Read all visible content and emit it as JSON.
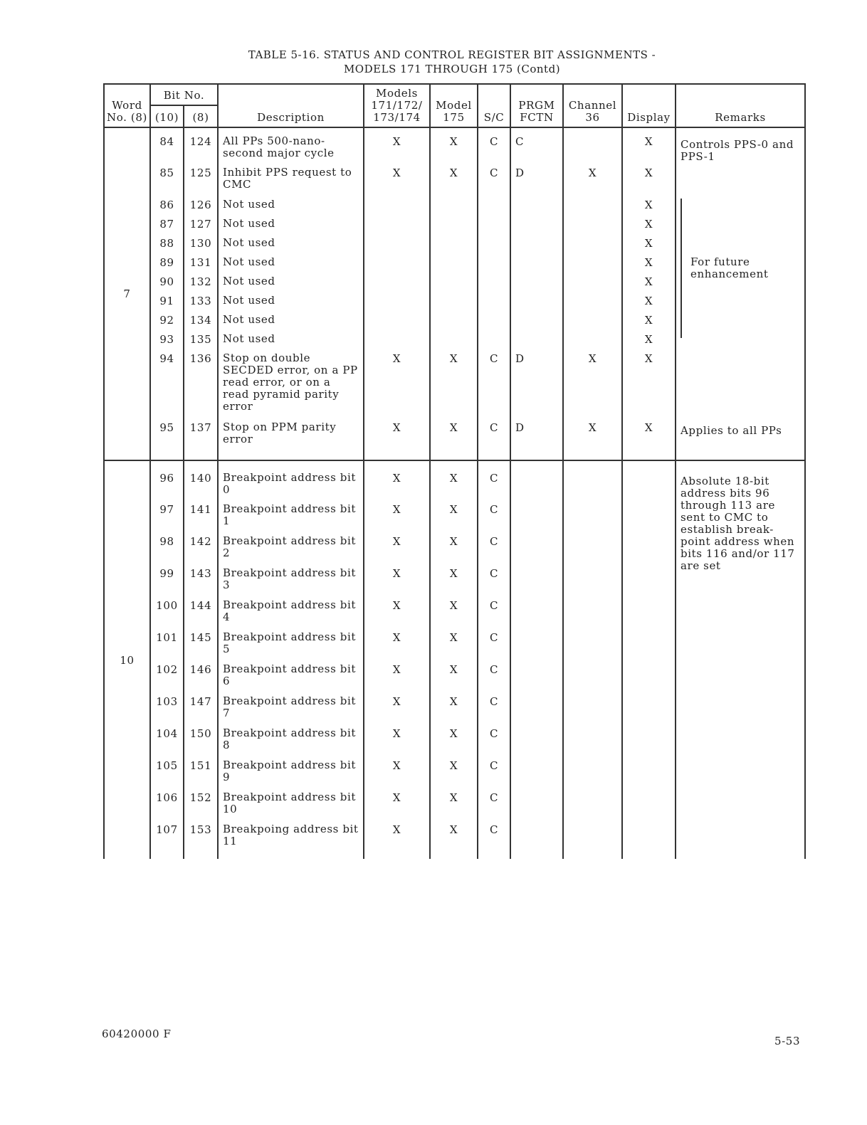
{
  "title": {
    "line1": "TABLE 5-16. STATUS AND CONTROL REGISTER BIT ASSIGNMENTS -",
    "line2": "MODELS 171 THROUGH 175 (Contd)"
  },
  "headers": {
    "word": "Word No. (8)",
    "bit": "Bit No.",
    "bit10": "(10)",
    "bit8": "(8)",
    "description": "Description",
    "models": "Models 171/172/ 173/174",
    "model175": "Model 175",
    "sc": "S/C",
    "prgm": "PRGM FCTN",
    "channel": "Channel 36",
    "display": "Display",
    "remarks": "Remarks"
  },
  "sections": [
    {
      "word": "7",
      "rows": [
        {
          "b10": "84",
          "b8": "124",
          "desc": "All PPs 500-nano-second major cycle",
          "m": "X",
          "m175": "X",
          "sc": "C",
          "prgm": "C",
          "ch": "",
          "disp": "X"
        },
        {
          "b10": "85",
          "b8": "125",
          "desc": "Inhibit PPS request to CMC",
          "m": "X",
          "m175": "X",
          "sc": "C",
          "prgm": "D",
          "ch": "X",
          "disp": "X"
        },
        {
          "b10": "86",
          "b8": "126",
          "desc": "Not used",
          "m": "",
          "m175": "",
          "sc": "",
          "prgm": "",
          "ch": "",
          "disp": "X"
        },
        {
          "b10": "87",
          "b8": "127",
          "desc": "Not used",
          "m": "",
          "m175": "",
          "sc": "",
          "prgm": "",
          "ch": "",
          "disp": "X"
        },
        {
          "b10": "88",
          "b8": "130",
          "desc": "Not used",
          "m": "",
          "m175": "",
          "sc": "",
          "prgm": "",
          "ch": "",
          "disp": "X"
        },
        {
          "b10": "89",
          "b8": "131",
          "desc": "Not used",
          "m": "",
          "m175": "",
          "sc": "",
          "prgm": "",
          "ch": "",
          "disp": "X"
        },
        {
          "b10": "90",
          "b8": "132",
          "desc": "Not used",
          "m": "",
          "m175": "",
          "sc": "",
          "prgm": "",
          "ch": "",
          "disp": "X"
        },
        {
          "b10": "91",
          "b8": "133",
          "desc": "Not used",
          "m": "",
          "m175": "",
          "sc": "",
          "prgm": "",
          "ch": "",
          "disp": "X"
        },
        {
          "b10": "92",
          "b8": "134",
          "desc": "Not used",
          "m": "",
          "m175": "",
          "sc": "",
          "prgm": "",
          "ch": "",
          "disp": "X"
        },
        {
          "b10": "93",
          "b8": "135",
          "desc": "Not used",
          "m": "",
          "m175": "",
          "sc": "",
          "prgm": "",
          "ch": "",
          "disp": "X"
        },
        {
          "b10": "94",
          "b8": "136",
          "desc": "Stop on double SECDED error, on a PP read error, or on a read pyramid parity error",
          "m": "X",
          "m175": "X",
          "sc": "C",
          "prgm": "D",
          "ch": "X",
          "disp": "X"
        },
        {
          "b10": "95",
          "b8": "137",
          "desc": "Stop on PPM parity error",
          "m": "X",
          "m175": "X",
          "sc": "C",
          "prgm": "D",
          "ch": "X",
          "disp": "X"
        }
      ],
      "remarks": [
        {
          "start": 0,
          "span": 2,
          "text": "Controls PPS-0 and PPS-1"
        },
        {
          "start": 2,
          "span": 8,
          "text": "For future enhancement",
          "bracket": true
        },
        {
          "start": 10,
          "span": 1,
          "text": ""
        },
        {
          "start": 11,
          "span": 1,
          "text": "Applies to all PPs"
        }
      ]
    },
    {
      "word": "10",
      "rows": [
        {
          "b10": "96",
          "b8": "140",
          "desc": "Breakpoint address bit 0",
          "m": "X",
          "m175": "X",
          "sc": "C",
          "prgm": "",
          "ch": "",
          "disp": ""
        },
        {
          "b10": "97",
          "b8": "141",
          "desc": "Breakpoint address bit 1",
          "m": "X",
          "m175": "X",
          "sc": "C",
          "prgm": "",
          "ch": "",
          "disp": ""
        },
        {
          "b10": "98",
          "b8": "142",
          "desc": "Breakpoint address bit 2",
          "m": "X",
          "m175": "X",
          "sc": "C",
          "prgm": "",
          "ch": "",
          "disp": ""
        },
        {
          "b10": "99",
          "b8": "143",
          "desc": "Breakpoint address bit 3",
          "m": "X",
          "m175": "X",
          "sc": "C",
          "prgm": "",
          "ch": "",
          "disp": ""
        },
        {
          "b10": "100",
          "b8": "144",
          "desc": "Breakpoint address bit 4",
          "m": "X",
          "m175": "X",
          "sc": "C",
          "prgm": "",
          "ch": "",
          "disp": ""
        },
        {
          "b10": "101",
          "b8": "145",
          "desc": "Breakpoint address bit 5",
          "m": "X",
          "m175": "X",
          "sc": "C",
          "prgm": "",
          "ch": "",
          "disp": ""
        },
        {
          "b10": "102",
          "b8": "146",
          "desc": "Breakpoint address bit 6",
          "m": "X",
          "m175": "X",
          "sc": "C",
          "prgm": "",
          "ch": "",
          "disp": ""
        },
        {
          "b10": "103",
          "b8": "147",
          "desc": "Breakpoint address bit 7",
          "m": "X",
          "m175": "X",
          "sc": "C",
          "prgm": "",
          "ch": "",
          "disp": ""
        },
        {
          "b10": "104",
          "b8": "150",
          "desc": "Breakpoint address bit 8",
          "m": "X",
          "m175": "X",
          "sc": "C",
          "prgm": "",
          "ch": "",
          "disp": ""
        },
        {
          "b10": "105",
          "b8": "151",
          "desc": "Breakpoint address bit 9",
          "m": "X",
          "m175": "X",
          "sc": "C",
          "prgm": "",
          "ch": "",
          "disp": ""
        },
        {
          "b10": "106",
          "b8": "152",
          "desc": "Breakpoint address bit 10",
          "m": "X",
          "m175": "X",
          "sc": "C",
          "prgm": "",
          "ch": "",
          "disp": ""
        },
        {
          "b10": "107",
          "b8": "153",
          "desc": "Breakpoing address bit 11",
          "m": "X",
          "m175": "X",
          "sc": "C",
          "prgm": "",
          "ch": "",
          "disp": ""
        }
      ],
      "remarks": [
        {
          "start": 0,
          "span": 12,
          "text": "Absolute 18-bit address bits 96 through 113 are sent to CMC to establish break-point address when bits 116 and/or 117 are set"
        }
      ]
    }
  ],
  "footer": {
    "doc_number": "60420000 F",
    "page": "5-53"
  }
}
